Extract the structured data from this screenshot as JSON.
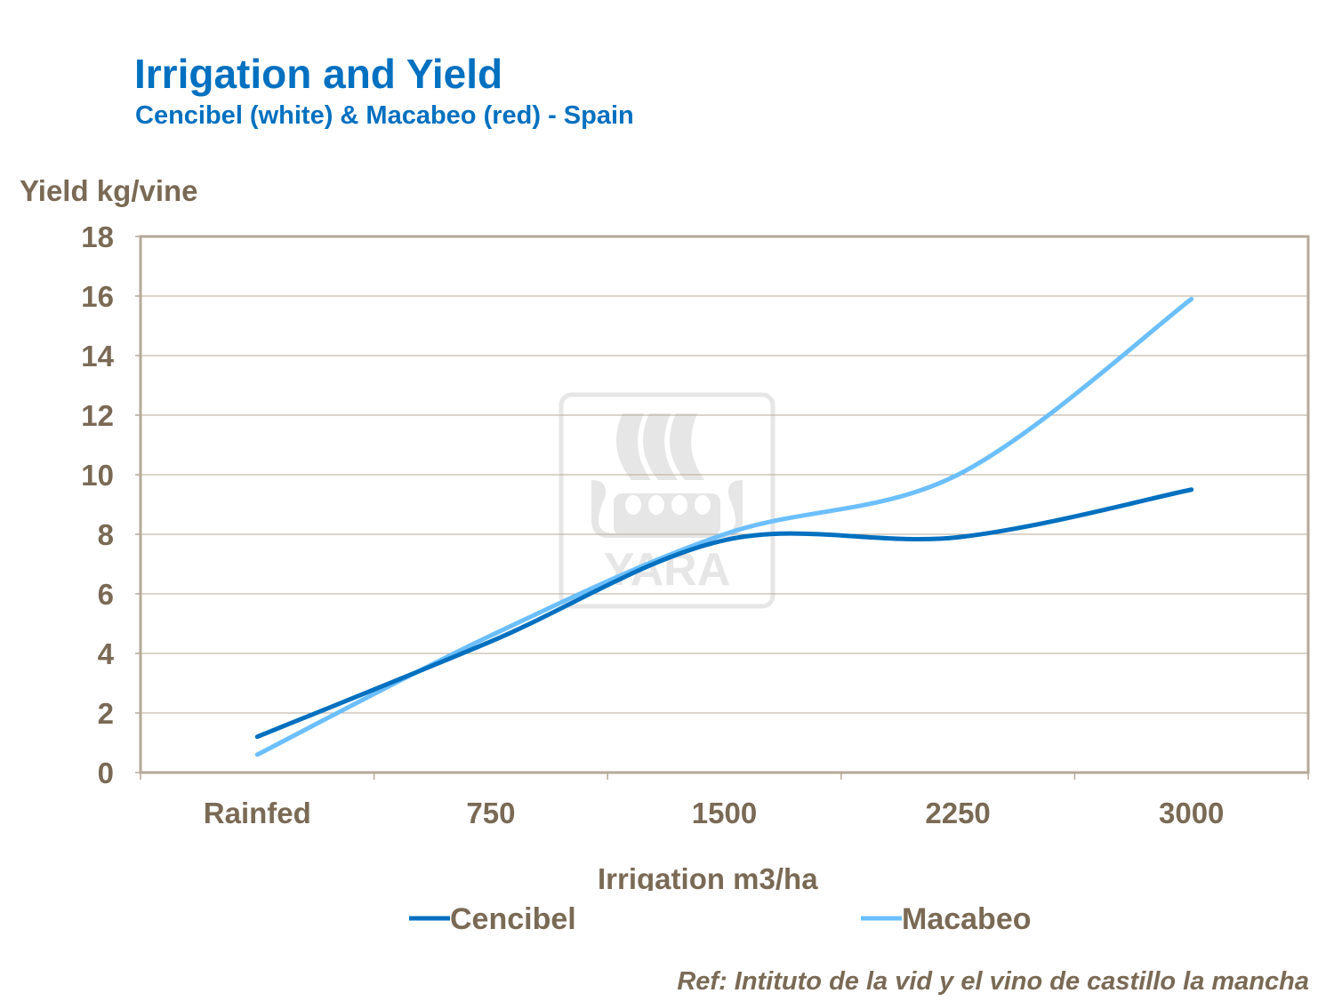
{
  "chart_data": {
    "type": "line",
    "title": "Irrigation and Yield",
    "subtitle": "Cencibel (white) & Macabeo (red) - Spain",
    "xlabel": "Irrigation m3/ha",
    "ylabel": "Yield  kg/vine",
    "categories": [
      "Rainfed",
      "750",
      "1500",
      "2250",
      "3000"
    ],
    "ylim": [
      0,
      18
    ],
    "yticks": [
      0,
      2,
      4,
      6,
      8,
      10,
      12,
      14,
      16,
      18
    ],
    "grid": true,
    "smooth": true,
    "legend_position": "bottom",
    "series": [
      {
        "name": "Cencibel",
        "color": "#0070c0",
        "values": [
          1.2,
          4.4,
          7.8,
          7.9,
          9.5
        ]
      },
      {
        "name": "Macabeo",
        "color": "#6cbfff",
        "values": [
          0.6,
          4.6,
          8.0,
          10.0,
          15.9
        ]
      }
    ],
    "annotation": "Ref: Intituto de la vid y el vino de castillo la mancha",
    "watermark": "YARA"
  }
}
